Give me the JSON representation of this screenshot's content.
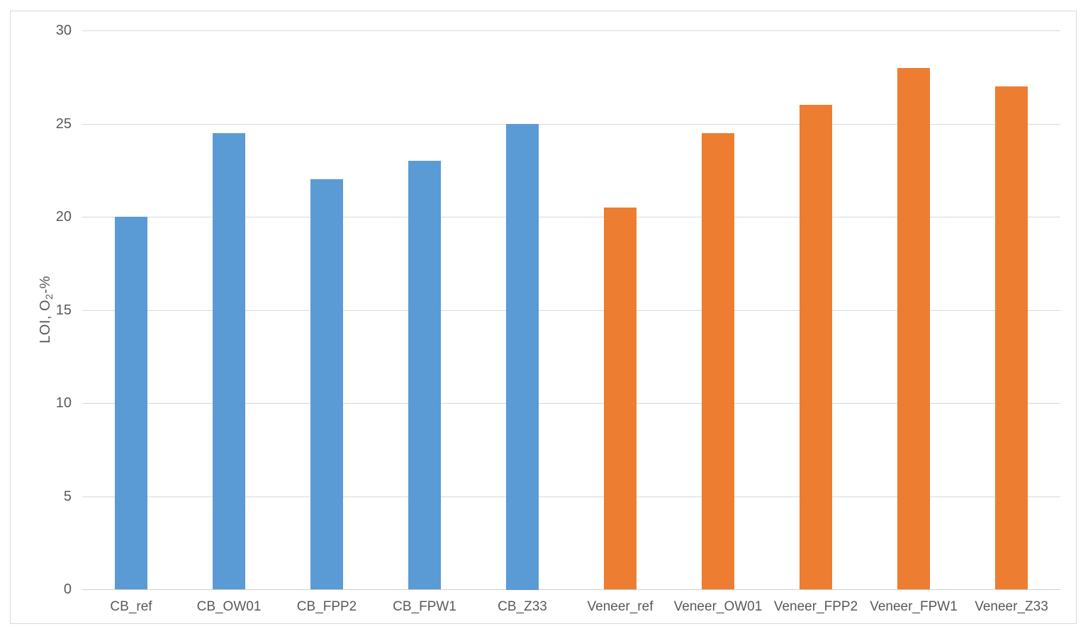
{
  "chart_data": {
    "type": "bar",
    "title": "",
    "categories": [
      "CB_ref",
      "CB_OW01",
      "CB_FPP2",
      "CB_FPW1",
      "CB_Z33",
      "Veneer_ref",
      "Veneer_OW01",
      "Veneer_FPP2",
      "Veneer_FPW1",
      "Veneer_Z33"
    ],
    "values": [
      20,
      24.5,
      22,
      23,
      25,
      20.5,
      24.5,
      26,
      28,
      27
    ],
    "bar_colors": [
      "#5B9BD5",
      "#5B9BD5",
      "#5B9BD5",
      "#5B9BD5",
      "#5B9BD5",
      "#ED7D31",
      "#ED7D31",
      "#ED7D31",
      "#ED7D31",
      "#ED7D31"
    ],
    "series_colors": {
      "CB": "#5B9BD5",
      "Veneer": "#ED7D31"
    },
    "xlabel": "",
    "ylabel": "LOI, O₂-%",
    "ylabel_parts": {
      "pre": "LOI, O",
      "sub": "2",
      "post": "-%"
    },
    "yticks": [
      0,
      5,
      10,
      15,
      20,
      25,
      30
    ],
    "ylim": [
      0,
      30
    ],
    "grid": "horizontal",
    "legend_position": "none",
    "colors": {
      "gridline": "#d9d9d9",
      "axis_line": "#cfcfcf",
      "tick_label": "#595959",
      "frame_border": "#d9d9d9",
      "background": "#ffffff"
    }
  }
}
